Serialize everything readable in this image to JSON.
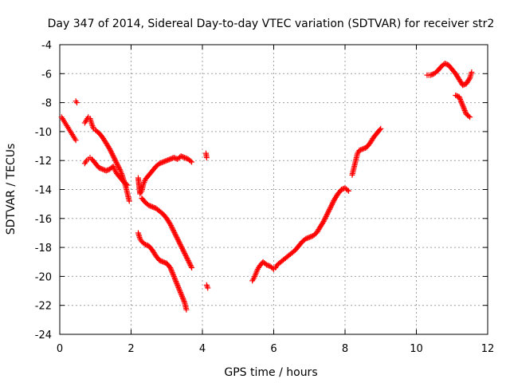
{
  "chart_data": {
    "type": "scatter",
    "title": "Day 347 of 2014, Sidereal Day-to-day VTEC variation (SDTVAR) for receiver str2",
    "xlabel": "GPS time / hours",
    "ylabel": "SDTVAR / TECUs",
    "xlim": [
      0,
      12
    ],
    "ylim": [
      -24,
      -4
    ],
    "x_ticks": [
      0,
      2,
      4,
      6,
      8,
      10,
      12
    ],
    "y_ticks": [
      -24,
      -22,
      -20,
      -18,
      -16,
      -14,
      -12,
      -10,
      -8,
      -6,
      -4
    ],
    "x_tick_labels": [
      "0",
      "2",
      "4",
      "6",
      "8",
      "10",
      "12"
    ],
    "y_tick_labels": [
      "-24",
      "-22",
      "-20",
      "-18",
      "-16",
      "-14",
      "-12",
      "-10",
      "-8",
      "-6",
      "-4"
    ],
    "grid": true,
    "marker": "+",
    "marker_color": "#ff0000",
    "series": [
      {
        "segments": [
          [
            [
              0.05,
              -9.0
            ],
            [
              0.1,
              -9.2
            ],
            [
              0.15,
              -9.4
            ],
            [
              0.2,
              -9.6
            ],
            [
              0.25,
              -9.8
            ],
            [
              0.3,
              -10.0
            ],
            [
              0.35,
              -10.2
            ],
            [
              0.4,
              -10.4
            ],
            [
              0.45,
              -10.6
            ]
          ],
          [
            [
              0.45,
              -7.9
            ],
            [
              0.48,
              -8.0
            ]
          ],
          [
            [
              0.7,
              -9.4
            ],
            [
              0.75,
              -9.2
            ],
            [
              0.8,
              -9.0
            ],
            [
              0.85,
              -9.1
            ],
            [
              0.9,
              -9.5
            ],
            [
              0.95,
              -9.8
            ],
            [
              1.0,
              -9.9
            ],
            [
              1.1,
              -10.1
            ],
            [
              1.2,
              -10.4
            ],
            [
              1.3,
              -10.8
            ],
            [
              1.4,
              -11.2
            ],
            [
              1.5,
              -11.7
            ],
            [
              1.6,
              -12.2
            ],
            [
              1.7,
              -12.7
            ],
            [
              1.75,
              -13.0
            ],
            [
              1.8,
              -13.4
            ],
            [
              1.85,
              -13.8
            ],
            [
              1.9,
              -14.3
            ],
            [
              1.95,
              -14.8
            ]
          ],
          [
            [
              0.7,
              -12.2
            ],
            [
              0.75,
              -12.0
            ],
            [
              0.8,
              -11.9
            ],
            [
              0.85,
              -11.8
            ],
            [
              0.9,
              -11.9
            ],
            [
              1.0,
              -12.2
            ],
            [
              1.1,
              -12.5
            ],
            [
              1.2,
              -12.6
            ],
            [
              1.3,
              -12.7
            ],
            [
              1.4,
              -12.6
            ],
            [
              1.5,
              -12.4
            ],
            [
              1.55,
              -12.7
            ],
            [
              1.6,
              -12.9
            ],
            [
              1.7,
              -13.2
            ],
            [
              1.8,
              -13.5
            ],
            [
              1.9,
              -13.7
            ]
          ],
          [
            [
              2.2,
              -13.2
            ],
            [
              2.25,
              -14.3
            ],
            [
              2.3,
              -14.1
            ],
            [
              2.35,
              -13.6
            ],
            [
              2.4,
              -13.3
            ],
            [
              2.5,
              -13.0
            ],
            [
              2.6,
              -12.7
            ],
            [
              2.7,
              -12.4
            ],
            [
              2.8,
              -12.2
            ],
            [
              2.9,
              -12.1
            ],
            [
              3.0,
              -12.0
            ],
            [
              3.1,
              -11.9
            ],
            [
              3.2,
              -11.8
            ],
            [
              3.3,
              -11.9
            ],
            [
              3.4,
              -11.7
            ],
            [
              3.5,
              -11.8
            ],
            [
              3.6,
              -11.9
            ],
            [
              3.7,
              -12.1
            ]
          ],
          [
            [
              2.3,
              -14.6
            ],
            [
              2.4,
              -14.9
            ],
            [
              2.5,
              -15.1
            ],
            [
              2.6,
              -15.2
            ],
            [
              2.7,
              -15.3
            ],
            [
              2.8,
              -15.5
            ],
            [
              2.9,
              -15.7
            ],
            [
              3.0,
              -16.0
            ],
            [
              3.1,
              -16.4
            ],
            [
              3.2,
              -16.9
            ],
            [
              3.3,
              -17.4
            ],
            [
              3.4,
              -17.9
            ],
            [
              3.5,
              -18.4
            ],
            [
              3.6,
              -18.9
            ],
            [
              3.7,
              -19.4
            ]
          ],
          [
            [
              2.2,
              -17.0
            ],
            [
              2.25,
              -17.4
            ],
            [
              2.3,
              -17.6
            ],
            [
              2.4,
              -17.8
            ],
            [
              2.5,
              -17.9
            ],
            [
              2.6,
              -18.2
            ],
            [
              2.7,
              -18.6
            ],
            [
              2.8,
              -18.9
            ],
            [
              2.9,
              -19.0
            ],
            [
              3.0,
              -19.1
            ],
            [
              3.1,
              -19.4
            ],
            [
              3.2,
              -20.0
            ],
            [
              3.3,
              -20.6
            ],
            [
              3.4,
              -21.2
            ],
            [
              3.5,
              -21.8
            ],
            [
              3.55,
              -22.3
            ]
          ],
          [
            [
              4.1,
              -11.5
            ],
            [
              4.12,
              -11.8
            ]
          ],
          [
            [
              4.12,
              -20.6
            ],
            [
              4.15,
              -20.8
            ]
          ],
          [
            [
              5.4,
              -20.3
            ],
            [
              5.45,
              -20.1
            ],
            [
              5.5,
              -19.8
            ],
            [
              5.55,
              -19.5
            ],
            [
              5.6,
              -19.3
            ],
            [
              5.7,
              -19.0
            ],
            [
              5.8,
              -19.2
            ],
            [
              5.9,
              -19.3
            ],
            [
              6.0,
              -19.5
            ],
            [
              6.05,
              -19.4
            ],
            [
              6.1,
              -19.2
            ],
            [
              6.2,
              -19.0
            ],
            [
              6.3,
              -18.8
            ],
            [
              6.4,
              -18.6
            ],
            [
              6.5,
              -18.4
            ],
            [
              6.6,
              -18.2
            ],
            [
              6.7,
              -17.9
            ],
            [
              6.8,
              -17.6
            ],
            [
              6.9,
              -17.4
            ],
            [
              7.0,
              -17.3
            ],
            [
              7.1,
              -17.2
            ],
            [
              7.2,
              -17.0
            ],
            [
              7.3,
              -16.6
            ],
            [
              7.4,
              -16.2
            ],
            [
              7.5,
              -15.7
            ],
            [
              7.6,
              -15.2
            ],
            [
              7.7,
              -14.7
            ],
            [
              7.8,
              -14.3
            ],
            [
              7.9,
              -14.0
            ],
            [
              8.0,
              -13.9
            ],
            [
              8.1,
              -14.1
            ]
          ],
          [
            [
              8.2,
              -13.0
            ],
            [
              8.25,
              -12.5
            ],
            [
              8.3,
              -12.0
            ],
            [
              8.35,
              -11.5
            ],
            [
              8.4,
              -11.3
            ],
            [
              8.5,
              -11.2
            ],
            [
              8.6,
              -11.1
            ],
            [
              8.7,
              -10.8
            ],
            [
              8.8,
              -10.4
            ],
            [
              8.9,
              -10.1
            ],
            [
              9.0,
              -9.8
            ]
          ],
          [
            [
              10.3,
              -6.1
            ],
            [
              10.4,
              -6.1
            ],
            [
              10.5,
              -6.0
            ],
            [
              10.6,
              -5.8
            ],
            [
              10.7,
              -5.5
            ],
            [
              10.8,
              -5.3
            ],
            [
              10.9,
              -5.4
            ],
            [
              11.0,
              -5.7
            ],
            [
              11.1,
              -6.0
            ],
            [
              11.2,
              -6.4
            ],
            [
              11.3,
              -6.8
            ],
            [
              11.4,
              -6.7
            ],
            [
              11.5,
              -6.3
            ],
            [
              11.55,
              -5.9
            ]
          ],
          [
            [
              11.1,
              -7.5
            ],
            [
              11.2,
              -7.6
            ],
            [
              11.3,
              -8.2
            ],
            [
              11.4,
              -8.8
            ],
            [
              11.5,
              -9.0
            ]
          ]
        ]
      }
    ]
  }
}
